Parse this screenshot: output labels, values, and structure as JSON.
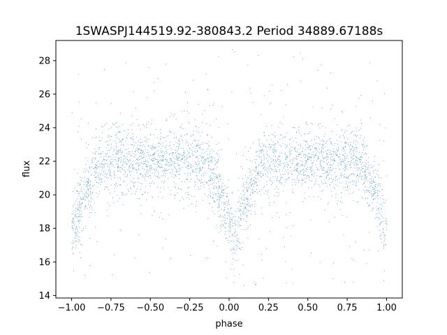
{
  "chart_data": {
    "type": "scatter",
    "title": "1SWASPJ144519.92-380843.2 Period 34889.67188s",
    "xlabel": "phase",
    "ylabel": "flux",
    "xlim": [
      -1.1,
      1.1
    ],
    "ylim": [
      13.85,
      29.2
    ],
    "x_ticks": [
      -1.0,
      -0.75,
      -0.5,
      -0.25,
      0.0,
      0.25,
      0.5,
      0.75,
      1.0
    ],
    "x_tick_labels": [
      "−1.00",
      "−0.75",
      "−0.50",
      "−0.25",
      "0.00",
      "0.25",
      "0.50",
      "0.75",
      "1.00"
    ],
    "y_ticks": [
      14,
      16,
      18,
      20,
      22,
      24,
      26,
      28
    ],
    "y_tick_labels": [
      "14",
      "16",
      "18",
      "20",
      "22",
      "24",
      "26",
      "28"
    ],
    "grid": false,
    "legend": "none",
    "marker_color": "#1f77b4",
    "light_curve": {
      "phase_range": [
        -1.0,
        1.0
      ],
      "baseline_flux": 22.0,
      "band_core_spread": 0.9,
      "band_scatter_range": [
        19.5,
        24.5
      ],
      "outlier_flux_range": [
        14.5,
        28.7
      ],
      "eclipses": [
        {
          "phase": -1.0,
          "min_flux": 17.5
        },
        {
          "phase": 0.03,
          "min_flux": 17.3
        },
        {
          "phase": 1.0,
          "min_flux": 17.8
        }
      ],
      "eclipse_half_width": 0.2
    },
    "point_count": 9000
  }
}
